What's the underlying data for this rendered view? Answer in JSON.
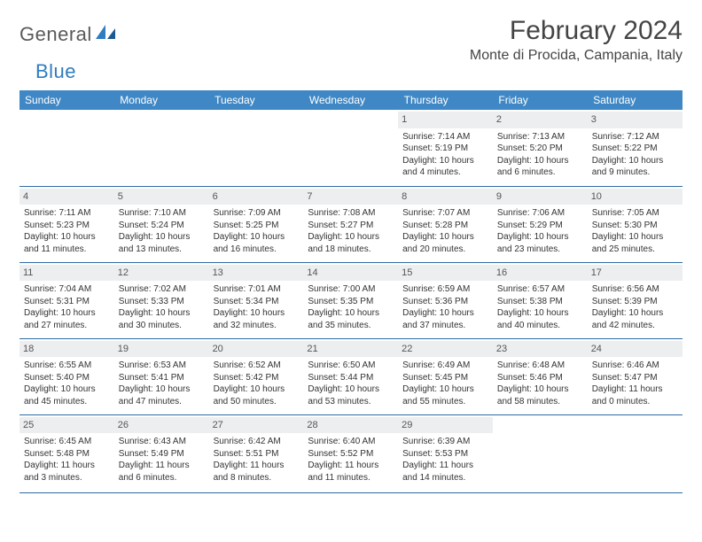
{
  "brand": {
    "word1": "General",
    "word2": "Blue"
  },
  "title": "February 2024",
  "location": "Monte di Procida, Campania, Italy",
  "colors": {
    "headerBg": "#3f88c5",
    "ruleColor": "#2e6aa3",
    "dayBg": "#eceef0"
  },
  "dayHeaders": [
    "Sunday",
    "Monday",
    "Tuesday",
    "Wednesday",
    "Thursday",
    "Friday",
    "Saturday"
  ],
  "weeks": [
    [
      {
        "n": "",
        "sr": "",
        "ss": "",
        "dl": ""
      },
      {
        "n": "",
        "sr": "",
        "ss": "",
        "dl": ""
      },
      {
        "n": "",
        "sr": "",
        "ss": "",
        "dl": ""
      },
      {
        "n": "",
        "sr": "",
        "ss": "",
        "dl": ""
      },
      {
        "n": "1",
        "sr": "Sunrise: 7:14 AM",
        "ss": "Sunset: 5:19 PM",
        "dl": "Daylight: 10 hours and 4 minutes."
      },
      {
        "n": "2",
        "sr": "Sunrise: 7:13 AM",
        "ss": "Sunset: 5:20 PM",
        "dl": "Daylight: 10 hours and 6 minutes."
      },
      {
        "n": "3",
        "sr": "Sunrise: 7:12 AM",
        "ss": "Sunset: 5:22 PM",
        "dl": "Daylight: 10 hours and 9 minutes."
      }
    ],
    [
      {
        "n": "4",
        "sr": "Sunrise: 7:11 AM",
        "ss": "Sunset: 5:23 PM",
        "dl": "Daylight: 10 hours and 11 minutes."
      },
      {
        "n": "5",
        "sr": "Sunrise: 7:10 AM",
        "ss": "Sunset: 5:24 PM",
        "dl": "Daylight: 10 hours and 13 minutes."
      },
      {
        "n": "6",
        "sr": "Sunrise: 7:09 AM",
        "ss": "Sunset: 5:25 PM",
        "dl": "Daylight: 10 hours and 16 minutes."
      },
      {
        "n": "7",
        "sr": "Sunrise: 7:08 AM",
        "ss": "Sunset: 5:27 PM",
        "dl": "Daylight: 10 hours and 18 minutes."
      },
      {
        "n": "8",
        "sr": "Sunrise: 7:07 AM",
        "ss": "Sunset: 5:28 PM",
        "dl": "Daylight: 10 hours and 20 minutes."
      },
      {
        "n": "9",
        "sr": "Sunrise: 7:06 AM",
        "ss": "Sunset: 5:29 PM",
        "dl": "Daylight: 10 hours and 23 minutes."
      },
      {
        "n": "10",
        "sr": "Sunrise: 7:05 AM",
        "ss": "Sunset: 5:30 PM",
        "dl": "Daylight: 10 hours and 25 minutes."
      }
    ],
    [
      {
        "n": "11",
        "sr": "Sunrise: 7:04 AM",
        "ss": "Sunset: 5:31 PM",
        "dl": "Daylight: 10 hours and 27 minutes."
      },
      {
        "n": "12",
        "sr": "Sunrise: 7:02 AM",
        "ss": "Sunset: 5:33 PM",
        "dl": "Daylight: 10 hours and 30 minutes."
      },
      {
        "n": "13",
        "sr": "Sunrise: 7:01 AM",
        "ss": "Sunset: 5:34 PM",
        "dl": "Daylight: 10 hours and 32 minutes."
      },
      {
        "n": "14",
        "sr": "Sunrise: 7:00 AM",
        "ss": "Sunset: 5:35 PM",
        "dl": "Daylight: 10 hours and 35 minutes."
      },
      {
        "n": "15",
        "sr": "Sunrise: 6:59 AM",
        "ss": "Sunset: 5:36 PM",
        "dl": "Daylight: 10 hours and 37 minutes."
      },
      {
        "n": "16",
        "sr": "Sunrise: 6:57 AM",
        "ss": "Sunset: 5:38 PM",
        "dl": "Daylight: 10 hours and 40 minutes."
      },
      {
        "n": "17",
        "sr": "Sunrise: 6:56 AM",
        "ss": "Sunset: 5:39 PM",
        "dl": "Daylight: 10 hours and 42 minutes."
      }
    ],
    [
      {
        "n": "18",
        "sr": "Sunrise: 6:55 AM",
        "ss": "Sunset: 5:40 PM",
        "dl": "Daylight: 10 hours and 45 minutes."
      },
      {
        "n": "19",
        "sr": "Sunrise: 6:53 AM",
        "ss": "Sunset: 5:41 PM",
        "dl": "Daylight: 10 hours and 47 minutes."
      },
      {
        "n": "20",
        "sr": "Sunrise: 6:52 AM",
        "ss": "Sunset: 5:42 PM",
        "dl": "Daylight: 10 hours and 50 minutes."
      },
      {
        "n": "21",
        "sr": "Sunrise: 6:50 AM",
        "ss": "Sunset: 5:44 PM",
        "dl": "Daylight: 10 hours and 53 minutes."
      },
      {
        "n": "22",
        "sr": "Sunrise: 6:49 AM",
        "ss": "Sunset: 5:45 PM",
        "dl": "Daylight: 10 hours and 55 minutes."
      },
      {
        "n": "23",
        "sr": "Sunrise: 6:48 AM",
        "ss": "Sunset: 5:46 PM",
        "dl": "Daylight: 10 hours and 58 minutes."
      },
      {
        "n": "24",
        "sr": "Sunrise: 6:46 AM",
        "ss": "Sunset: 5:47 PM",
        "dl": "Daylight: 11 hours and 0 minutes."
      }
    ],
    [
      {
        "n": "25",
        "sr": "Sunrise: 6:45 AM",
        "ss": "Sunset: 5:48 PM",
        "dl": "Daylight: 11 hours and 3 minutes."
      },
      {
        "n": "26",
        "sr": "Sunrise: 6:43 AM",
        "ss": "Sunset: 5:49 PM",
        "dl": "Daylight: 11 hours and 6 minutes."
      },
      {
        "n": "27",
        "sr": "Sunrise: 6:42 AM",
        "ss": "Sunset: 5:51 PM",
        "dl": "Daylight: 11 hours and 8 minutes."
      },
      {
        "n": "28",
        "sr": "Sunrise: 6:40 AM",
        "ss": "Sunset: 5:52 PM",
        "dl": "Daylight: 11 hours and 11 minutes."
      },
      {
        "n": "29",
        "sr": "Sunrise: 6:39 AM",
        "ss": "Sunset: 5:53 PM",
        "dl": "Daylight: 11 hours and 14 minutes."
      },
      {
        "n": "",
        "sr": "",
        "ss": "",
        "dl": ""
      },
      {
        "n": "",
        "sr": "",
        "ss": "",
        "dl": ""
      }
    ]
  ]
}
